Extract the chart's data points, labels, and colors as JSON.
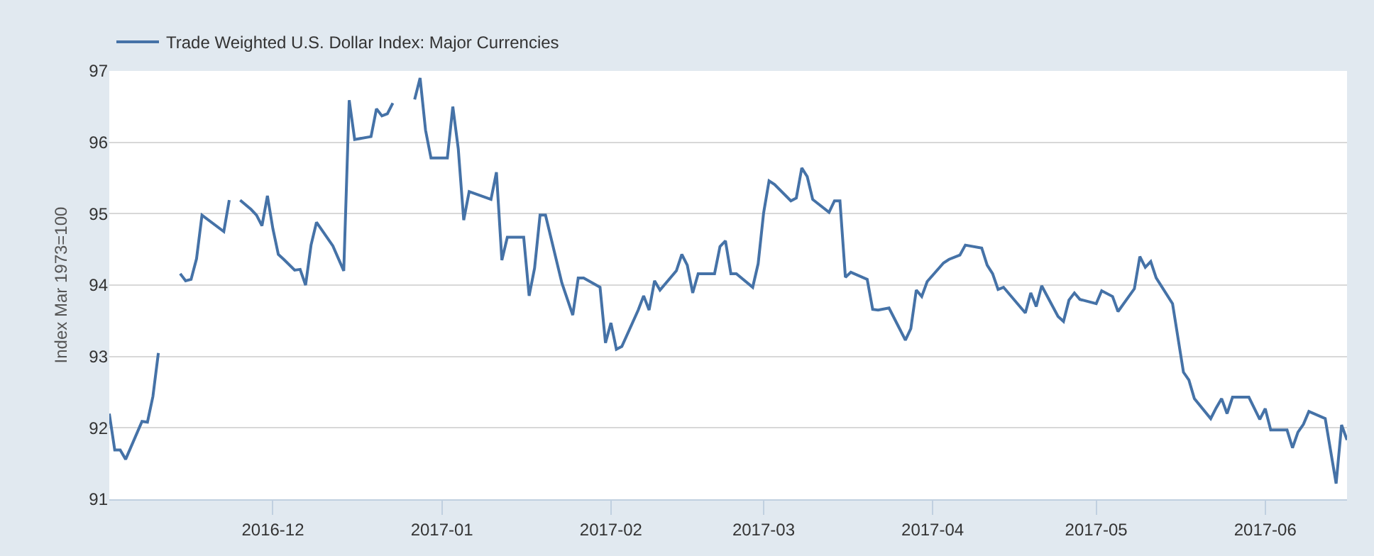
{
  "chart_data": {
    "type": "line",
    "ylabel": "Index Mar 1973=100",
    "x": [
      "2016-11-01",
      "2016-11-02",
      "2016-11-03",
      "2016-11-04",
      "2016-11-07",
      "2016-11-08",
      "2016-11-09",
      "2016-11-10",
      "2016-11-11",
      "2016-11-14",
      "2016-11-15",
      "2016-11-16",
      "2016-11-17",
      "2016-11-18",
      "2016-11-22",
      "2016-11-23",
      "2016-11-24",
      "2016-11-25",
      "2016-11-27",
      "2016-11-28",
      "2016-11-29",
      "2016-11-30",
      "2016-12-01",
      "2016-12-02",
      "2016-12-03",
      "2016-12-05",
      "2016-12-06",
      "2016-12-07",
      "2016-12-08",
      "2016-12-09",
      "2016-12-12",
      "2016-12-14",
      "2016-12-15",
      "2016-12-16",
      "2016-12-19",
      "2016-12-20",
      "2016-12-21",
      "2016-12-22",
      "2016-12-23",
      "2016-12-26",
      "2016-12-27",
      "2016-12-28",
      "2016-12-29",
      "2016-12-30",
      "2017-01-02",
      "2017-01-03",
      "2017-01-04",
      "2017-01-05",
      "2017-01-06",
      "2017-01-10",
      "2017-01-11",
      "2017-01-12",
      "2017-01-13",
      "2017-01-16",
      "2017-01-17",
      "2017-01-18",
      "2017-01-19",
      "2017-01-20",
      "2017-01-23",
      "2017-01-25",
      "2017-01-26",
      "2017-01-27",
      "2017-01-30",
      "2017-01-31",
      "2017-02-01",
      "2017-02-02",
      "2017-02-03",
      "2017-02-06",
      "2017-02-07",
      "2017-02-08",
      "2017-02-09",
      "2017-02-10",
      "2017-02-13",
      "2017-02-14",
      "2017-02-15",
      "2017-02-16",
      "2017-02-17",
      "2017-02-20",
      "2017-02-21",
      "2017-02-22",
      "2017-02-23",
      "2017-02-24",
      "2017-02-27",
      "2017-02-28",
      "2017-03-01",
      "2017-03-02",
      "2017-03-03",
      "2017-03-06",
      "2017-03-07",
      "2017-03-08",
      "2017-03-09",
      "2017-03-10",
      "2017-03-13",
      "2017-03-14",
      "2017-03-15",
      "2017-03-16",
      "2017-03-17",
      "2017-03-20",
      "2017-03-21",
      "2017-03-22",
      "2017-03-24",
      "2017-03-27",
      "2017-03-28",
      "2017-03-29",
      "2017-03-30",
      "2017-03-31",
      "2017-04-03",
      "2017-04-04",
      "2017-04-06",
      "2017-04-07",
      "2017-04-10",
      "2017-04-11",
      "2017-04-12",
      "2017-04-13",
      "2017-04-14",
      "2017-04-18",
      "2017-04-19",
      "2017-04-20",
      "2017-04-21",
      "2017-04-24",
      "2017-04-25",
      "2017-04-26",
      "2017-04-27",
      "2017-04-28",
      "2017-05-01",
      "2017-05-02",
      "2017-05-04",
      "2017-05-05",
      "2017-05-08",
      "2017-05-09",
      "2017-05-10",
      "2017-05-11",
      "2017-05-12",
      "2017-05-15",
      "2017-05-17",
      "2017-05-18",
      "2017-05-19",
      "2017-05-22",
      "2017-05-23",
      "2017-05-24",
      "2017-05-25",
      "2017-05-26",
      "2017-05-29",
      "2017-05-31",
      "2017-06-01",
      "2017-06-02",
      "2017-06-05",
      "2017-06-06",
      "2017-06-07",
      "2017-06-08",
      "2017-06-09",
      "2017-06-12",
      "2017-06-14",
      "2017-06-15",
      "2017-06-16"
    ],
    "series": [
      {
        "name": "Trade Weighted U.S. Dollar Index: Major Currencies",
        "color": "#4572a7",
        "values": [
          92.2,
          91.69,
          91.69,
          91.56,
          92.09,
          92.08,
          92.44,
          93.05,
          null,
          94.16,
          94.06,
          94.08,
          94.37,
          94.98,
          94.75,
          95.19,
          null,
          95.19,
          95.06,
          94.98,
          94.83,
          95.25,
          94.79,
          94.43,
          94.36,
          94.21,
          94.22,
          94.0,
          94.56,
          94.88,
          94.55,
          94.2,
          96.59,
          96.04,
          96.08,
          96.47,
          96.37,
          96.4,
          96.55,
          null,
          96.6,
          96.9,
          96.17,
          95.78,
          95.78,
          96.5,
          95.91,
          94.91,
          95.31,
          95.2,
          95.58,
          94.35,
          94.67,
          94.67,
          93.85,
          94.24,
          94.98,
          94.98,
          94.03,
          93.58,
          94.1,
          94.1,
          93.97,
          93.19,
          93.47,
          93.1,
          93.14,
          93.65,
          93.85,
          93.65,
          94.06,
          93.93,
          94.2,
          94.43,
          94.28,
          93.89,
          94.16,
          94.16,
          94.54,
          94.62,
          94.16,
          94.16,
          93.97,
          94.3,
          95.01,
          95.46,
          95.41,
          95.18,
          95.22,
          95.64,
          95.52,
          95.2,
          95.02,
          95.18,
          95.18,
          94.11,
          94.18,
          94.08,
          93.66,
          93.65,
          93.68,
          93.23,
          93.39,
          93.93,
          93.84,
          94.05,
          94.31,
          94.36,
          94.42,
          94.56,
          94.52,
          94.28,
          94.16,
          93.94,
          93.97,
          93.61,
          93.89,
          93.7,
          93.99,
          93.56,
          93.49,
          93.79,
          93.89,
          93.8,
          93.74,
          93.92,
          93.84,
          93.63,
          93.95,
          94.4,
          94.25,
          94.33,
          94.1,
          93.74,
          92.78,
          92.67,
          92.41,
          92.13,
          92.28,
          92.41,
          92.2,
          92.43,
          92.43,
          92.12,
          92.27,
          91.97,
          91.97,
          91.72,
          91.94,
          92.05,
          92.23,
          92.13,
          91.22,
          92.04,
          91.83
        ]
      }
    ],
    "xlim": [
      "2016-11-01",
      "2017-06-16"
    ],
    "xticks": [
      "2016-12",
      "2017-01",
      "2017-02",
      "2017-03",
      "2017-04",
      "2017-05",
      "2017-06"
    ],
    "ylim": [
      91,
      97
    ],
    "yticks": [
      91,
      92,
      93,
      94,
      95,
      96,
      97
    ],
    "grid": "y",
    "legend": "top left",
    "marker": "none",
    "line_style": "solid"
  }
}
